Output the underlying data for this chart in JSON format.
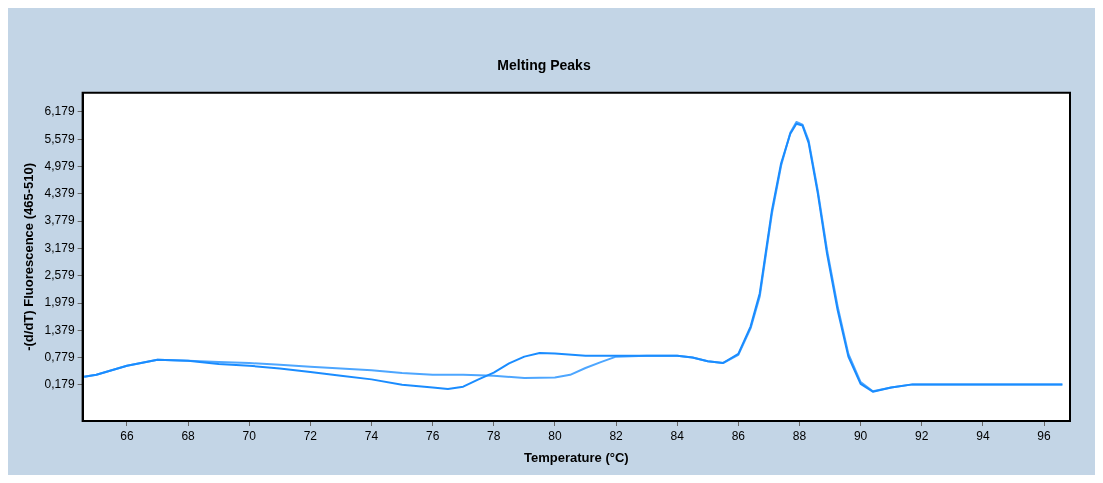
{
  "chart_data": {
    "type": "line",
    "title": "Melting Peaks",
    "xlabel": "Temperature (°C)",
    "ylabel": "-(d/dT) Fluorescence (465-510)",
    "xlim": [
      64.55,
      96.85
    ],
    "ylim": [
      -0.615,
      6.6
    ],
    "xticks": [
      66,
      68,
      70,
      72,
      74,
      76,
      78,
      80,
      82,
      84,
      86,
      88,
      90,
      92,
      94,
      96
    ],
    "yticks": [
      {
        "value": 0.179,
        "label": "0,179"
      },
      {
        "value": 0.779,
        "label": "0,779"
      },
      {
        "value": 1.379,
        "label": "1,379"
      },
      {
        "value": 1.979,
        "label": "1,979"
      },
      {
        "value": 2.579,
        "label": "2,579"
      },
      {
        "value": 3.179,
        "label": "3,179"
      },
      {
        "value": 3.779,
        "label": "3,779"
      },
      {
        "value": 4.379,
        "label": "4,379"
      },
      {
        "value": 4.979,
        "label": "4,979"
      },
      {
        "value": 5.579,
        "label": "5,579"
      },
      {
        "value": 6.179,
        "label": "6,179"
      }
    ],
    "grid": false,
    "legend": false,
    "marker": "none",
    "line_style": "solid",
    "series": [
      {
        "color": "#1a8cff",
        "x": [
          64.6,
          65,
          66,
          67,
          68,
          69,
          70,
          71,
          72,
          73,
          74,
          75,
          76,
          76.5,
          77,
          77.5,
          78,
          78.5,
          79,
          79.5,
          80,
          81,
          82,
          83,
          84,
          84.5,
          85,
          85.5,
          86,
          86.4,
          86.7,
          87.1,
          87.4,
          87.7,
          87.9,
          88.1,
          88.3,
          88.6,
          88.9,
          89.25,
          89.6,
          90,
          90.4,
          91,
          91.7,
          93,
          95,
          96.6
        ],
        "values": [
          0.36,
          0.4,
          0.6,
          0.73,
          0.71,
          0.64,
          0.6,
          0.54,
          0.46,
          0.38,
          0.3,
          0.18,
          0.12,
          0.09,
          0.14,
          0.3,
          0.45,
          0.65,
          0.8,
          0.88,
          0.87,
          0.82,
          0.82,
          0.82,
          0.82,
          0.78,
          0.7,
          0.66,
          0.86,
          1.46,
          2.19,
          4.02,
          5.05,
          5.7,
          5.92,
          5.88,
          5.5,
          4.39,
          3.07,
          1.82,
          0.8,
          0.2,
          0.03,
          0.12,
          0.19,
          0.19,
          0.19,
          0.19
        ]
      },
      {
        "color": "#4da6ff",
        "x": [
          64.6,
          65,
          66,
          67,
          68,
          69,
          70,
          71,
          72,
          73,
          74,
          75,
          76,
          77,
          78,
          79,
          80,
          80.5,
          81,
          81.5,
          82,
          83,
          84,
          84.5,
          85,
          85.5,
          86,
          86.4,
          86.7,
          87.1,
          87.4,
          87.7,
          87.9,
          88.1,
          88.3,
          88.6,
          88.9,
          89.25,
          89.6,
          90,
          90.4,
          91,
          91.7,
          93,
          95,
          96.6
        ],
        "values": [
          0.36,
          0.4,
          0.6,
          0.73,
          0.71,
          0.68,
          0.66,
          0.62,
          0.58,
          0.54,
          0.5,
          0.44,
          0.4,
          0.4,
          0.38,
          0.33,
          0.34,
          0.4,
          0.55,
          0.68,
          0.8,
          0.82,
          0.82,
          0.78,
          0.7,
          0.66,
          0.84,
          1.42,
          2.12,
          3.95,
          5.0,
          5.72,
          5.96,
          5.9,
          5.55,
          4.45,
          3.15,
          1.9,
          0.86,
          0.24,
          0.04,
          0.12,
          0.19,
          0.19,
          0.19,
          0.19
        ]
      }
    ]
  }
}
